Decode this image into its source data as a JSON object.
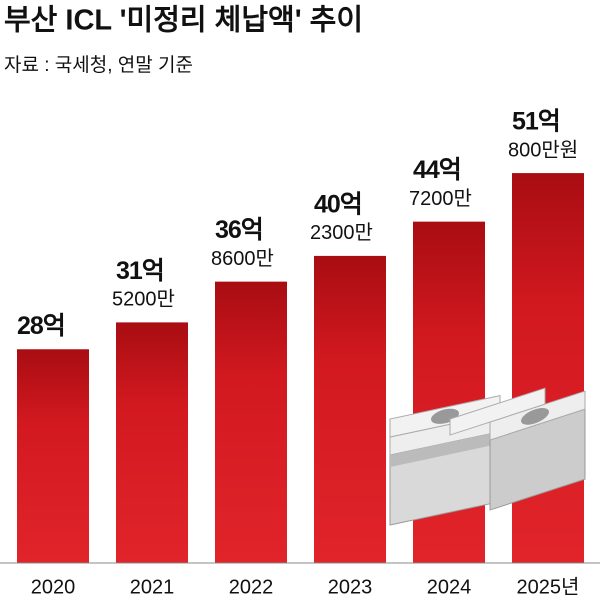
{
  "chart_data": {
    "type": "bar",
    "title": "부산 ICL '미정리 체납액' 추이",
    "subtitle": "자료 : 국세청, 연말 기준",
    "categories": [
      "2020",
      "2021",
      "2022",
      "2023",
      "2024",
      "2025년"
    ],
    "values": [
      28,
      31.52,
      36.86,
      40.23,
      44.72,
      51.08
    ],
    "value_labels": [
      [
        "28억"
      ],
      [
        "31억",
        "5200만"
      ],
      [
        "36억",
        "8600만"
      ],
      [
        "40억",
        "2300만"
      ],
      [
        "44억",
        "7200만"
      ],
      [
        "51억",
        "800만원"
      ]
    ],
    "color": "#d31920",
    "ylim": [
      0,
      60
    ]
  }
}
